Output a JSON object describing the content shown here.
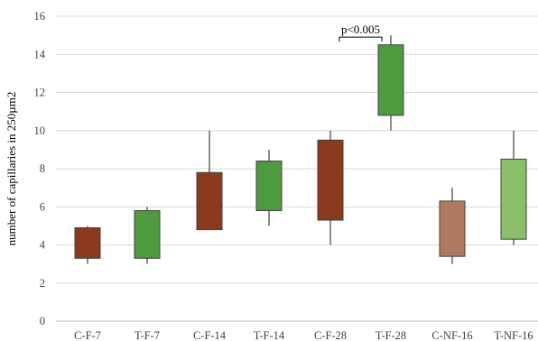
{
  "chart_data": {
    "type": "box",
    "ylabel": "number of capillaries in 250µm2",
    "ylim": [
      0,
      16
    ],
    "yticks": [
      0,
      2,
      4,
      6,
      8,
      10,
      12,
      14,
      16
    ],
    "grid": true,
    "categories": [
      "C-F-7",
      "T-F-7",
      "C-F-14",
      "T-F-14",
      "C-F-28",
      "T-F-28",
      "C-NF-16",
      "T-NF-16"
    ],
    "boxes": [
      {
        "category": "C-F-7",
        "min": 3.0,
        "q1": 3.3,
        "q3": 4.9,
        "max": 5.0,
        "color": "#8B3A1E"
      },
      {
        "category": "T-F-7",
        "min": 3.0,
        "q1": 3.3,
        "q3": 5.8,
        "max": 6.0,
        "color": "#4E9A3E"
      },
      {
        "category": "C-F-14",
        "min": 4.8,
        "q1": 4.8,
        "q3": 7.8,
        "max": 10.0,
        "color": "#8B3A1E"
      },
      {
        "category": "T-F-14",
        "min": 5.0,
        "q1": 5.8,
        "q3": 8.4,
        "max": 9.0,
        "color": "#4E9A3E"
      },
      {
        "category": "C-F-28",
        "min": 4.0,
        "q1": 5.3,
        "q3": 9.5,
        "max": 10.0,
        "color": "#8B3A1E"
      },
      {
        "category": "T-F-28",
        "min": 10.0,
        "q1": 10.8,
        "q3": 14.5,
        "max": 15.0,
        "color": "#4E9A3E"
      },
      {
        "category": "C-NF-16",
        "min": 3.0,
        "q1": 3.4,
        "q3": 6.3,
        "max": 7.0,
        "color": "#B07A5E"
      },
      {
        "category": "T-NF-16",
        "min": 4.0,
        "q1": 4.3,
        "q3": 8.5,
        "max": 10.0,
        "color": "#8CC068"
      }
    ],
    "annotation": {
      "text": "p<0.005",
      "from_category": "C-F-28",
      "to_category": "T-F-28",
      "y": 15.0
    }
  }
}
